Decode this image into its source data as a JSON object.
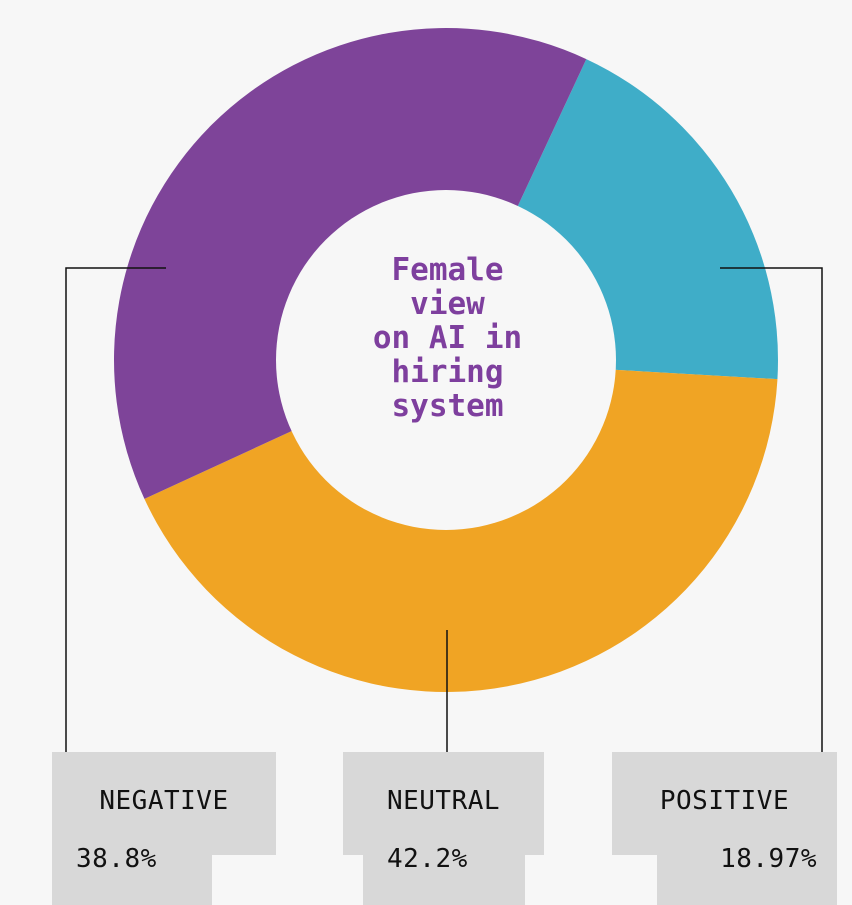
{
  "chart_data": {
    "type": "pie",
    "title": "Female\nview\non AI in\nhiring\nsystem",
    "slices": [
      {
        "label": "POSITIVE",
        "display": "18.97%",
        "value": 18.97,
        "color": "#3fadc8"
      },
      {
        "label": "NEUTRAL",
        "display": "42.2%",
        "value": 42.2,
        "color": "#f0a424"
      },
      {
        "label": "NEGATIVE",
        "display": "38.8%",
        "value": 38.8,
        "color": "#7e4499"
      }
    ]
  },
  "colors": {
    "background": "#f7f7f7",
    "title": "#7e3f9e",
    "label_box": "#d8d8d8",
    "leader_line": "#111111"
  }
}
